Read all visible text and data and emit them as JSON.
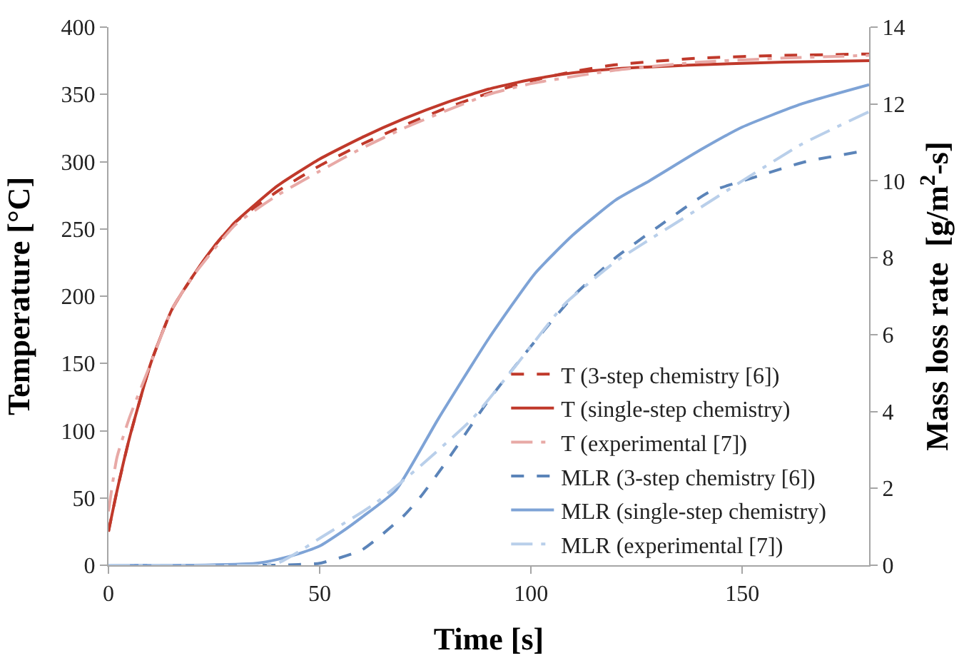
{
  "chart_data": {
    "type": "line",
    "xlabel": "Time [s]",
    "ylabel": "Temperature [°C]",
    "y2label": "Mass loss rate  [g/m$^{2}$-s]",
    "xlim": [
      0,
      180
    ],
    "xticks": [
      0,
      50,
      100,
      150
    ],
    "ylim": [
      0,
      400
    ],
    "yticks": [
      0,
      50,
      100,
      150,
      200,
      250,
      300,
      350,
      400
    ],
    "y2lim": [
      0,
      14
    ],
    "y2ticks": [
      0,
      2,
      4,
      6,
      8,
      10,
      12,
      14
    ],
    "legend": "bottom right",
    "marker": "none",
    "series": [
      {
        "name": "T (3-step chemistry [6])",
        "color": "#c0392b",
        "line_style": "dashed",
        "x": [
          0,
          2,
          5,
          10,
          15,
          20,
          25,
          30,
          40,
          50,
          60,
          70,
          80,
          90,
          100,
          110,
          120,
          140,
          160,
          180
        ],
        "values": [
          25,
          55,
          95,
          150,
          190,
          215,
          237,
          255,
          278,
          297,
          313,
          327,
          340,
          351,
          360,
          367,
          372,
          377,
          379,
          380
        ]
      },
      {
        "name": "T (single-step chemistry)",
        "color": "#c0392b",
        "line_style": "solid",
        "x": [
          0,
          2,
          5,
          10,
          15,
          20,
          25,
          30,
          40,
          50,
          60,
          70,
          80,
          90,
          100,
          110,
          120,
          140,
          160,
          180
        ],
        "values": [
          25,
          55,
          95,
          150,
          190,
          215,
          237,
          255,
          282,
          302,
          318,
          332,
          344,
          354,
          361,
          366,
          369,
          372,
          374,
          375
        ]
      },
      {
        "name": "T (experimental [7])",
        "color": "#e8a9a6",
        "line_style": "dashdot",
        "x": [
          0,
          2,
          5,
          10,
          15,
          20,
          30,
          40,
          50,
          60,
          70,
          80,
          90,
          100,
          120,
          140,
          160,
          180
        ],
        "values": [
          40,
          80,
          110,
          150,
          190,
          215,
          253,
          275,
          293,
          310,
          325,
          338,
          350,
          358,
          368,
          374,
          377,
          379
        ]
      },
      {
        "name": "MLR (3-step chemistry [6])",
        "color": "#5b84b9",
        "line_style": "dashed",
        "axis": "y2",
        "x": [
          0,
          20,
          40,
          45,
          50,
          60,
          70,
          74,
          80,
          90,
          100,
          110,
          120,
          130,
          142,
          153,
          165,
          180
        ],
        "values": [
          0,
          0,
          0,
          0.02,
          0.05,
          0.4,
          1.3,
          1.8,
          2.7,
          4.3,
          5.7,
          7.0,
          8.0,
          8.8,
          9.7,
          10.1,
          10.5,
          10.8
        ]
      },
      {
        "name": "MLR (single-step chemistry)",
        "color": "#7ea3d6",
        "line_style": "solid",
        "axis": "y2",
        "x": [
          0,
          20,
          35,
          40,
          45,
          50,
          55,
          60,
          68,
          78,
          90,
          101,
          110,
          120,
          128,
          140,
          150,
          164,
          180
        ],
        "values": [
          0,
          0,
          0.05,
          0.15,
          0.3,
          0.5,
          0.85,
          1.25,
          1.95,
          3.8,
          5.9,
          7.6,
          8.6,
          9.5,
          10.0,
          10.8,
          11.4,
          12.0,
          12.5
        ]
      },
      {
        "name": "MLR (experimental [7])",
        "color": "#b9cfea",
        "line_style": "dashdot",
        "axis": "y2",
        "x": [
          0,
          35,
          40,
          45,
          50,
          63,
          74,
          86,
          95,
          100,
          108,
          120,
          127,
          140,
          150,
          164,
          180
        ],
        "values": [
          0,
          0,
          0.05,
          0.35,
          0.7,
          1.6,
          2.6,
          3.8,
          5.0,
          5.7,
          6.8,
          7.9,
          8.4,
          9.3,
          10.0,
          10.95,
          11.8
        ]
      }
    ]
  }
}
